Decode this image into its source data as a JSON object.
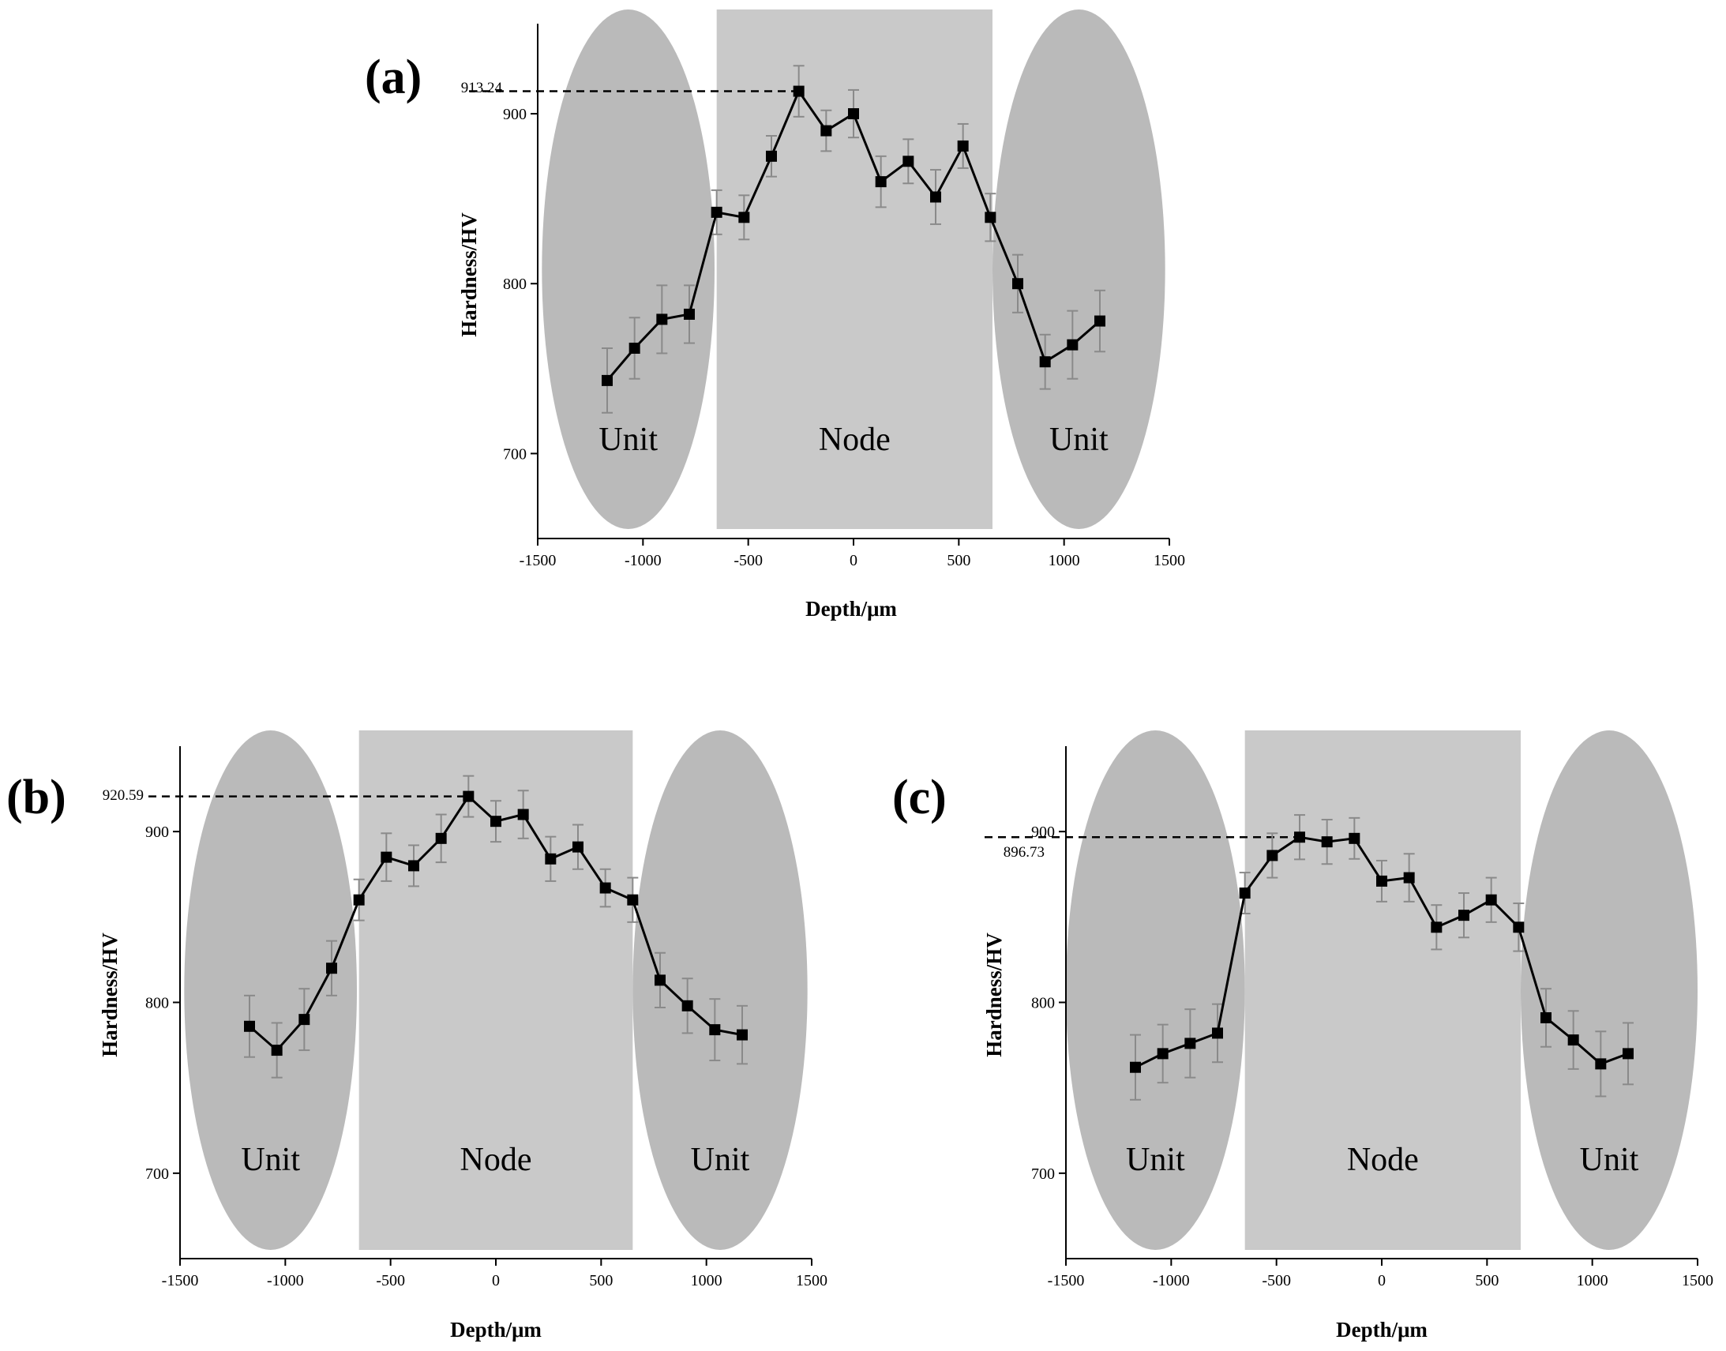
{
  "chart_data": [
    {
      "id": "a",
      "panel_label": "(a)",
      "type": "line",
      "xlabel": "Depth/μm",
      "ylabel": "Hardness/HV",
      "xlim": [
        -1500,
        1500
      ],
      "ylim": [
        650,
        953
      ],
      "x_ticks": [
        -1500,
        -1000,
        -500,
        0,
        500,
        1000,
        1500
      ],
      "y_ticks": [
        700,
        800,
        900
      ],
      "x": [
        -1170,
        -1040,
        -910,
        -780,
        -650,
        -520,
        -390,
        -260,
        -130,
        0,
        130,
        260,
        390,
        520,
        650,
        780,
        910,
        1040,
        1170
      ],
      "values": [
        743,
        762,
        779,
        782,
        842,
        839,
        875,
        913.24,
        890,
        900,
        860,
        872,
        851,
        881,
        839,
        800,
        754,
        764,
        778
      ],
      "errors": [
        19,
        18,
        20,
        17,
        13,
        13,
        12,
        15,
        12,
        14,
        15,
        13,
        16,
        13,
        14,
        17,
        16,
        20,
        18
      ],
      "peak": {
        "x": -260,
        "value": 913.24,
        "label": "913.24"
      },
      "regions": [
        {
          "kind": "ellipse",
          "label": "Unit",
          "x_from": -1480,
          "x_to": -660
        },
        {
          "kind": "rect",
          "label": "Node",
          "x_from": -650,
          "x_to": 660
        },
        {
          "kind": "ellipse",
          "label": "Unit",
          "x_from": 660,
          "x_to": 1480
        }
      ]
    },
    {
      "id": "b",
      "panel_label": "(b)",
      "type": "line",
      "xlabel": "Depth/μm",
      "ylabel": "Hardness/HV",
      "xlim": [
        -1500,
        1500
      ],
      "ylim": [
        650,
        950
      ],
      "x_ticks": [
        -1500,
        -1000,
        -500,
        0,
        500,
        1000,
        1500
      ],
      "y_ticks": [
        700,
        800,
        900
      ],
      "x": [
        -1170,
        -1040,
        -910,
        -780,
        -650,
        -520,
        -390,
        -260,
        -130,
        0,
        130,
        260,
        390,
        520,
        650,
        780,
        910,
        1040,
        1170
      ],
      "values": [
        786,
        772,
        790,
        820,
        860,
        885,
        880,
        896,
        920.59,
        906,
        910,
        884,
        891,
        867,
        860,
        813,
        798,
        784,
        781
      ],
      "errors": [
        18,
        16,
        18,
        16,
        12,
        14,
        12,
        14,
        12,
        12,
        14,
        13,
        13,
        11,
        13,
        16,
        16,
        18,
        17
      ],
      "peak": {
        "x": -130,
        "value": 920.59,
        "label": "920.59"
      },
      "regions": [
        {
          "kind": "ellipse",
          "label": "Unit",
          "x_from": -1480,
          "x_to": -660
        },
        {
          "kind": "rect",
          "label": "Node",
          "x_from": -650,
          "x_to": 650
        },
        {
          "kind": "ellipse",
          "label": "Unit",
          "x_from": 650,
          "x_to": 1480
        }
      ]
    },
    {
      "id": "c",
      "panel_label": "(c)",
      "type": "line",
      "xlabel": "Depth/μm",
      "ylabel": "Hardness/HV",
      "xlim": [
        -1500,
        1500
      ],
      "ylim": [
        650,
        950
      ],
      "x_ticks": [
        -1500,
        -1000,
        -500,
        0,
        500,
        1000,
        1500
      ],
      "y_ticks": [
        700,
        800,
        900
      ],
      "x": [
        -1170,
        -1040,
        -910,
        -780,
        -650,
        -520,
        -390,
        -260,
        -130,
        0,
        130,
        260,
        390,
        520,
        650,
        780,
        910,
        1040,
        1170
      ],
      "values": [
        762,
        770,
        776,
        782,
        864,
        886,
        896.73,
        894,
        896,
        871,
        873,
        844,
        851,
        860,
        844,
        791,
        778,
        764,
        770
      ],
      "errors": [
        19,
        17,
        20,
        17,
        12,
        13,
        13,
        13,
        12,
        12,
        14,
        13,
        13,
        13,
        14,
        17,
        17,
        19,
        18
      ],
      "peak": {
        "x": -390,
        "value": 896.73,
        "label": "896.73"
      },
      "regions": [
        {
          "kind": "ellipse",
          "label": "Unit",
          "x_from": -1500,
          "x_to": -650
        },
        {
          "kind": "rect",
          "label": "Node",
          "x_from": -650,
          "x_to": 660
        },
        {
          "kind": "ellipse",
          "label": "Unit",
          "x_from": 660,
          "x_to": 1500
        }
      ]
    }
  ]
}
